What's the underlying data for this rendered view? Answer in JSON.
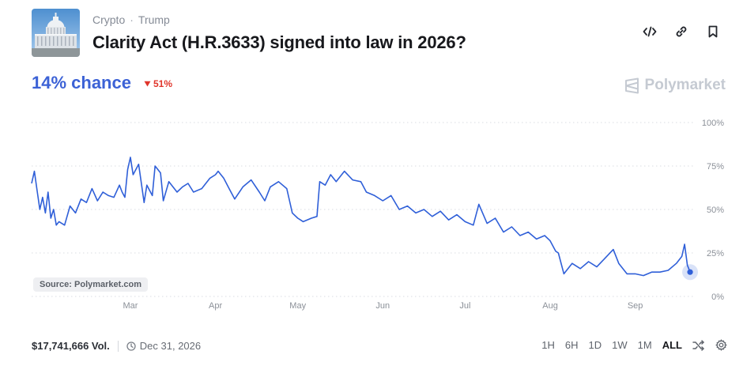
{
  "header": {
    "breadcrumb": [
      "Crypto",
      "Trump"
    ],
    "separator": "·",
    "title": "Clarity Act (H.R.3633) signed into law in 2026?",
    "thumbnail": "capitol-building-image",
    "actions": [
      {
        "name": "embed-icon"
      },
      {
        "name": "link-icon"
      },
      {
        "name": "bookmark-icon"
      }
    ]
  },
  "market": {
    "chance_label": "14% chance",
    "change_label": "51%",
    "change_direction": "down",
    "change_color": "#e0352b",
    "accent_color": "#3c62d6"
  },
  "brand": {
    "name": "Polymarket"
  },
  "source_label": "Source: Polymarket.com",
  "chart_data": {
    "type": "line",
    "title": "",
    "xlabel": "",
    "ylabel": "",
    "ylim": [
      0,
      100
    ],
    "y_ticks": [
      {
        "value": 100,
        "label": "100%"
      },
      {
        "value": 75,
        "label": "75%"
      },
      {
        "value": 50,
        "label": "50%"
      },
      {
        "value": 25,
        "label": "25%"
      },
      {
        "value": 0,
        "label": "0%"
      }
    ],
    "xlim": [
      "2026-01-24",
      "2026-09-23"
    ],
    "x_ticks": [
      {
        "value": "2026-03-01",
        "label": "Mar"
      },
      {
        "value": "2026-04-01",
        "label": "Apr"
      },
      {
        "value": "2026-05-01",
        "label": "May"
      },
      {
        "value": "2026-06-01",
        "label": "Jun"
      },
      {
        "value": "2026-07-01",
        "label": "Jul"
      },
      {
        "value": "2026-08-01",
        "label": "Aug"
      },
      {
        "value": "2026-09-01",
        "label": "Sep"
      }
    ],
    "grid": true,
    "series": [
      {
        "color": "#2f5fd8",
        "points": [
          [
            "2026-01-24",
            65
          ],
          [
            "2026-01-25",
            72
          ],
          [
            "2026-01-26",
            61
          ],
          [
            "2026-01-27",
            50
          ],
          [
            "2026-01-28",
            57
          ],
          [
            "2026-01-29",
            48
          ],
          [
            "2026-01-30",
            60
          ],
          [
            "2026-01-31",
            45
          ],
          [
            "2026-02-01",
            50
          ],
          [
            "2026-02-02",
            41
          ],
          [
            "2026-02-03",
            43
          ],
          [
            "2026-02-05",
            41
          ],
          [
            "2026-02-07",
            52
          ],
          [
            "2026-02-09",
            48
          ],
          [
            "2026-02-11",
            56
          ],
          [
            "2026-02-13",
            54
          ],
          [
            "2026-02-15",
            62
          ],
          [
            "2026-02-17",
            55
          ],
          [
            "2026-02-19",
            60
          ],
          [
            "2026-02-21",
            58
          ],
          [
            "2026-02-23",
            57
          ],
          [
            "2026-02-25",
            64
          ],
          [
            "2026-02-26",
            60
          ],
          [
            "2026-02-27",
            57
          ],
          [
            "2026-02-28",
            73
          ],
          [
            "2026-03-01",
            80
          ],
          [
            "2026-03-02",
            70
          ],
          [
            "2026-03-04",
            76
          ],
          [
            "2026-03-06",
            54
          ],
          [
            "2026-03-07",
            64
          ],
          [
            "2026-03-09",
            58
          ],
          [
            "2026-03-10",
            75
          ],
          [
            "2026-03-12",
            71
          ],
          [
            "2026-03-13",
            55
          ],
          [
            "2026-03-15",
            66
          ],
          [
            "2026-03-18",
            60
          ],
          [
            "2026-03-20",
            63
          ],
          [
            "2026-03-22",
            65
          ],
          [
            "2026-03-24",
            60
          ],
          [
            "2026-03-27",
            62
          ],
          [
            "2026-03-30",
            68
          ],
          [
            "2026-04-01",
            70
          ],
          [
            "2026-04-02",
            72
          ],
          [
            "2026-04-04",
            68
          ],
          [
            "2026-04-06",
            62
          ],
          [
            "2026-04-08",
            56
          ],
          [
            "2026-04-11",
            63
          ],
          [
            "2026-04-14",
            67
          ],
          [
            "2026-04-17",
            60
          ],
          [
            "2026-04-19",
            55
          ],
          [
            "2026-04-21",
            63
          ],
          [
            "2026-04-24",
            66
          ],
          [
            "2026-04-27",
            62
          ],
          [
            "2026-04-28",
            55
          ],
          [
            "2026-04-29",
            48
          ],
          [
            "2026-05-01",
            45
          ],
          [
            "2026-05-03",
            43
          ],
          [
            "2026-05-06",
            45
          ],
          [
            "2026-05-08",
            46
          ],
          [
            "2026-05-09",
            66
          ],
          [
            "2026-05-11",
            64
          ],
          [
            "2026-05-13",
            70
          ],
          [
            "2026-05-15",
            66
          ],
          [
            "2026-05-18",
            72
          ],
          [
            "2026-05-21",
            67
          ],
          [
            "2026-05-24",
            66
          ],
          [
            "2026-05-26",
            60
          ],
          [
            "2026-05-29",
            58
          ],
          [
            "2026-06-01",
            55
          ],
          [
            "2026-06-04",
            58
          ],
          [
            "2026-06-07",
            50
          ],
          [
            "2026-06-10",
            52
          ],
          [
            "2026-06-13",
            48
          ],
          [
            "2026-06-16",
            50
          ],
          [
            "2026-06-19",
            46
          ],
          [
            "2026-06-22",
            49
          ],
          [
            "2026-06-25",
            44
          ],
          [
            "2026-06-28",
            47
          ],
          [
            "2026-07-01",
            43
          ],
          [
            "2026-07-04",
            41
          ],
          [
            "2026-07-06",
            53
          ],
          [
            "2026-07-09",
            42
          ],
          [
            "2026-07-12",
            45
          ],
          [
            "2026-07-15",
            37
          ],
          [
            "2026-07-18",
            40
          ],
          [
            "2026-07-21",
            35
          ],
          [
            "2026-07-24",
            37
          ],
          [
            "2026-07-27",
            33
          ],
          [
            "2026-07-30",
            35
          ],
          [
            "2026-08-01",
            32
          ],
          [
            "2026-08-03",
            26
          ],
          [
            "2026-08-04",
            25
          ],
          [
            "2026-08-06",
            13
          ],
          [
            "2026-08-09",
            19
          ],
          [
            "2026-08-12",
            16
          ],
          [
            "2026-08-15",
            20
          ],
          [
            "2026-08-18",
            17
          ],
          [
            "2026-08-21",
            22
          ],
          [
            "2026-08-24",
            27
          ],
          [
            "2026-08-26",
            19
          ],
          [
            "2026-08-29",
            13
          ],
          [
            "2026-09-01",
            13
          ],
          [
            "2026-09-04",
            12
          ],
          [
            "2026-09-07",
            14
          ],
          [
            "2026-09-10",
            14
          ],
          [
            "2026-09-13",
            15
          ],
          [
            "2026-09-16",
            19
          ],
          [
            "2026-09-18",
            23
          ],
          [
            "2026-09-19",
            30
          ],
          [
            "2026-09-20",
            18
          ],
          [
            "2026-09-21",
            14
          ]
        ]
      }
    ]
  },
  "footer": {
    "volume": "$17,741,666 Vol.",
    "end_date": "Dec 31, 2026",
    "timeframes": [
      "1H",
      "6H",
      "1D",
      "1W",
      "1M",
      "ALL"
    ],
    "active_timeframe": "ALL"
  }
}
